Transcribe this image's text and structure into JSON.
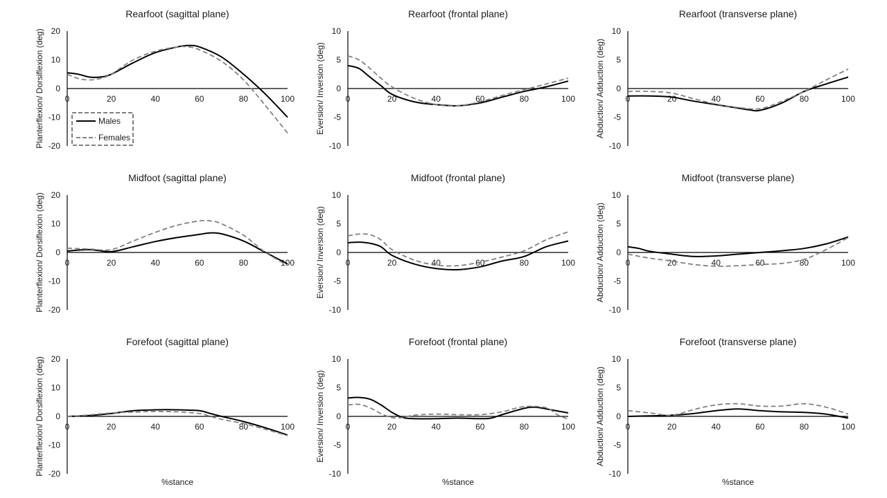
{
  "legend": {
    "position": "inside top-left panel",
    "entries": [
      {
        "name": "Males",
        "color": "#000000",
        "dash": "solid"
      },
      {
        "name": "Females",
        "color": "#808080",
        "dash": "dashed"
      }
    ]
  },
  "chart_data": [
    {
      "type": "line",
      "title": "Rearfoot (sagittal plane)",
      "xlabel": "",
      "ylabel": "Planterflexion/ Dorsiflexion (deg)",
      "xlim": [
        0,
        100
      ],
      "ylim": [
        -20,
        20
      ],
      "xticks": [
        0,
        20,
        40,
        60,
        80,
        100
      ],
      "yticks": [
        20,
        10,
        0,
        -10,
        -20
      ],
      "grid": false,
      "series": [
        {
          "name": "Males",
          "x": [
            0,
            5,
            10,
            15,
            20,
            30,
            40,
            50,
            55,
            60,
            70,
            80,
            90,
            100
          ],
          "y": [
            5.5,
            5,
            4,
            4,
            5,
            9,
            12.5,
            14.5,
            15,
            14.5,
            11,
            5,
            -2,
            -10
          ]
        },
        {
          "name": "Females",
          "x": [
            0,
            5,
            10,
            15,
            20,
            30,
            40,
            50,
            55,
            60,
            70,
            80,
            90,
            100
          ],
          "y": [
            5,
            3.5,
            3,
            3.5,
            5,
            10,
            13,
            14.5,
            14.5,
            13.5,
            9.5,
            3,
            -6,
            -15.5
          ]
        }
      ]
    },
    {
      "type": "line",
      "title": "Rearfoot (frontal plane)",
      "xlabel": "",
      "ylabel": "Eversion/ Inversion (deg)",
      "xlim": [
        0,
        100
      ],
      "ylim": [
        -10,
        10
      ],
      "xticks": [
        0,
        20,
        40,
        60,
        80,
        100
      ],
      "yticks": [
        10,
        5,
        0,
        -5,
        -10
      ],
      "grid": false,
      "series": [
        {
          "name": "Males",
          "x": [
            0,
            5,
            10,
            15,
            20,
            30,
            40,
            50,
            60,
            70,
            80,
            90,
            100
          ],
          "y": [
            4,
            3.5,
            2,
            0.5,
            -1,
            -2.3,
            -2.8,
            -3,
            -2.5,
            -1.5,
            -0.5,
            0.3,
            1.3
          ]
        },
        {
          "name": "Females",
          "x": [
            0,
            5,
            10,
            15,
            20,
            30,
            40,
            50,
            60,
            70,
            80,
            90,
            100
          ],
          "y": [
            5.7,
            5,
            3.5,
            1.8,
            0.3,
            -1.7,
            -2.8,
            -3,
            -2.3,
            -1.2,
            -0.2,
            0.8,
            1.8
          ]
        }
      ]
    },
    {
      "type": "line",
      "title": "Rearfoot (transverse plane)",
      "xlabel": "",
      "ylabel": "Abduction/ Adduction (deg)",
      "xlim": [
        0,
        100
      ],
      "ylim": [
        -10,
        10
      ],
      "xticks": [
        0,
        20,
        40,
        60,
        80,
        100
      ],
      "yticks": [
        10,
        5,
        0,
        -5,
        -10
      ],
      "grid": false,
      "series": [
        {
          "name": "Males",
          "x": [
            0,
            10,
            20,
            30,
            40,
            50,
            55,
            60,
            70,
            80,
            90,
            100
          ],
          "y": [
            -1.3,
            -1.3,
            -1.5,
            -2.2,
            -2.8,
            -3.4,
            -3.7,
            -3.8,
            -2.5,
            -0.5,
            0.8,
            2
          ]
        },
        {
          "name": "Females",
          "x": [
            0,
            10,
            20,
            30,
            40,
            50,
            60,
            70,
            80,
            90,
            100
          ],
          "y": [
            -0.5,
            -0.5,
            -0.8,
            -1.8,
            -2.7,
            -3.3,
            -3.5,
            -2.2,
            -0.5,
            1.5,
            3.4
          ]
        }
      ]
    },
    {
      "type": "line",
      "title": "Midfoot (sagittal plane)",
      "xlabel": "",
      "ylabel": "Planterflexion/ Dorsiflexion (deg)",
      "xlim": [
        0,
        100
      ],
      "ylim": [
        -20,
        20
      ],
      "xticks": [
        0,
        20,
        40,
        60,
        80,
        100
      ],
      "yticks": [
        20,
        10,
        0,
        -10,
        -20
      ],
      "grid": false,
      "series": [
        {
          "name": "Males",
          "x": [
            0,
            10,
            20,
            30,
            40,
            50,
            60,
            65,
            70,
            80,
            90,
            100
          ],
          "y": [
            0.5,
            1,
            0.3,
            2,
            3.8,
            5.2,
            6.3,
            6.8,
            6.5,
            4,
            0,
            -4
          ]
        },
        {
          "name": "Females",
          "x": [
            0,
            10,
            20,
            30,
            40,
            50,
            60,
            65,
            70,
            80,
            90,
            100
          ],
          "y": [
            1.5,
            1.2,
            1,
            4,
            7,
            9.5,
            11,
            11,
            10,
            6,
            0,
            -4.5
          ]
        }
      ]
    },
    {
      "type": "line",
      "title": "Midfoot (frontal plane)",
      "xlabel": "",
      "ylabel": "Eversion/ Inversion (deg)",
      "xlim": [
        0,
        100
      ],
      "ylim": [
        -10,
        10
      ],
      "xticks": [
        0,
        20,
        40,
        60,
        80,
        100
      ],
      "yticks": [
        10,
        5,
        0,
        -5,
        -10
      ],
      "grid": false,
      "series": [
        {
          "name": "Males",
          "x": [
            0,
            5,
            10,
            15,
            20,
            30,
            40,
            50,
            60,
            70,
            80,
            90,
            100
          ],
          "y": [
            1.7,
            1.8,
            1.6,
            1,
            -0.5,
            -2,
            -2.8,
            -3,
            -2.5,
            -1.5,
            -0.7,
            1,
            2
          ]
        },
        {
          "name": "Females",
          "x": [
            0,
            5,
            10,
            15,
            20,
            30,
            40,
            50,
            60,
            70,
            80,
            90,
            100
          ],
          "y": [
            2.9,
            3.2,
            3.1,
            2.2,
            0.5,
            -1.3,
            -2.2,
            -2.3,
            -1.7,
            -0.8,
            0.3,
            2.2,
            3.6
          ]
        }
      ]
    },
    {
      "type": "line",
      "title": "Midfoot (transverse plane)",
      "xlabel": "",
      "ylabel": "Abduction/ Adduction (deg)",
      "xlim": [
        0,
        100
      ],
      "ylim": [
        -10,
        10
      ],
      "xticks": [
        0,
        20,
        40,
        60,
        80,
        100
      ],
      "yticks": [
        10,
        5,
        0,
        -5,
        -10
      ],
      "grid": false,
      "series": [
        {
          "name": "Males",
          "x": [
            0,
            5,
            10,
            20,
            30,
            40,
            50,
            60,
            70,
            80,
            90,
            100
          ],
          "y": [
            1,
            0.7,
            0.2,
            -0.3,
            -0.7,
            -0.6,
            -0.3,
            0,
            0.3,
            0.7,
            1.5,
            2.7
          ]
        },
        {
          "name": "Females",
          "x": [
            0,
            10,
            20,
            30,
            40,
            50,
            60,
            70,
            80,
            90,
            100
          ],
          "y": [
            -0.3,
            -1,
            -1.5,
            -2.1,
            -2.4,
            -2.3,
            -2.1,
            -1.9,
            -1.2,
            0.5,
            2.6
          ]
        }
      ]
    },
    {
      "type": "line",
      "title": "Forefoot (sagittal plane)",
      "xlabel": "%stance",
      "ylabel": "Planterflexion/ Dorsiflexion (deg)",
      "xlim": [
        0,
        100
      ],
      "ylim": [
        -20,
        20
      ],
      "xticks": [
        0,
        20,
        40,
        60,
        80,
        100
      ],
      "yticks": [
        20,
        10,
        0,
        -10,
        -20
      ],
      "grid": false,
      "series": [
        {
          "name": "Males",
          "x": [
            0,
            10,
            20,
            30,
            40,
            50,
            60,
            65,
            70,
            80,
            90,
            100
          ],
          "y": [
            0,
            0.3,
            1,
            2,
            2.3,
            2.3,
            2,
            1,
            0,
            -1.8,
            -4,
            -6.5
          ]
        },
        {
          "name": "Females",
          "x": [
            0,
            10,
            20,
            30,
            40,
            50,
            60,
            65,
            70,
            80,
            90,
            100
          ],
          "y": [
            0,
            0.5,
            1.2,
            1.5,
            1.7,
            1.6,
            1,
            0,
            -1,
            -2.5,
            -4.5,
            -6.7
          ]
        }
      ]
    },
    {
      "type": "line",
      "title": "Forefoot (frontal plane)",
      "xlabel": "%stance",
      "ylabel": "Eversion/ Inversion (deg)",
      "xlim": [
        0,
        100
      ],
      "ylim": [
        -10,
        10
      ],
      "xticks": [
        0,
        20,
        40,
        60,
        80,
        100
      ],
      "yticks": [
        10,
        5,
        0,
        -5,
        -10
      ],
      "grid": false,
      "series": [
        {
          "name": "Males",
          "x": [
            0,
            5,
            10,
            15,
            20,
            25,
            30,
            40,
            50,
            60,
            65,
            70,
            80,
            85,
            90,
            100
          ],
          "y": [
            3.2,
            3.3,
            3,
            2,
            0.7,
            -0.2,
            -0.4,
            -0.4,
            -0.3,
            -0.4,
            -0.3,
            0.3,
            1.4,
            1.6,
            1.3,
            0.6
          ]
        },
        {
          "name": "Females",
          "x": [
            0,
            5,
            10,
            15,
            20,
            25,
            30,
            40,
            50,
            60,
            70,
            80,
            90,
            95,
            100
          ],
          "y": [
            2,
            2.1,
            1.5,
            0.5,
            -0.2,
            -0.2,
            0.2,
            0.4,
            0.3,
            0.3,
            0.8,
            1.7,
            1.5,
            0.3,
            -0.5
          ]
        }
      ]
    },
    {
      "type": "line",
      "title": "Forefoot (transverse plane)",
      "xlabel": "%stance",
      "ylabel": "Abduction/ Adduction (deg)",
      "xlim": [
        0,
        100
      ],
      "ylim": [
        -10,
        10
      ],
      "xticks": [
        0,
        20,
        40,
        60,
        80,
        100
      ],
      "yticks": [
        10,
        5,
        0,
        -5,
        -10
      ],
      "grid": false,
      "series": [
        {
          "name": "Males",
          "x": [
            0,
            10,
            20,
            30,
            40,
            50,
            60,
            70,
            80,
            90,
            100
          ],
          "y": [
            0,
            0.1,
            0.2,
            0.5,
            1,
            1.3,
            1,
            0.8,
            0.7,
            0.4,
            -0.3
          ]
        },
        {
          "name": "Females",
          "x": [
            0,
            10,
            20,
            30,
            40,
            50,
            60,
            70,
            80,
            90,
            100
          ],
          "y": [
            1,
            0.6,
            0.2,
            1.2,
            2,
            2.2,
            1.8,
            1.8,
            2.2,
            1.6,
            0.4
          ]
        }
      ]
    }
  ]
}
